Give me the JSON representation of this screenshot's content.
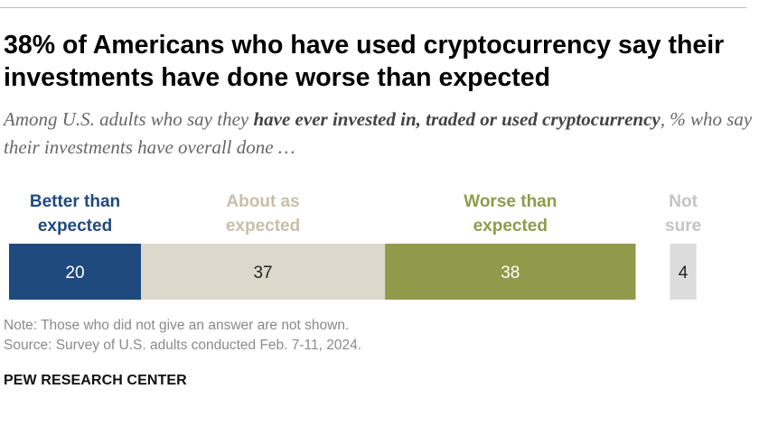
{
  "title": "38% of Americans who have used cryptocurrency say their investments have done worse than expected",
  "subtitle": {
    "part1": "Among U.S. adults who say they ",
    "bold": "have ever invested in, traded or used cryptocurrency",
    "part2": ", % who say their investments have overall done …"
  },
  "chart_data": {
    "type": "bar",
    "orientation": "horizontal-stacked",
    "categories": [
      "Better than expected",
      "About as expected",
      "Worse than expected",
      "Not sure"
    ],
    "category_lines": [
      [
        "Better than",
        "expected"
      ],
      [
        "About as",
        "expected"
      ],
      [
        "Worse than",
        "expected"
      ],
      [
        "Not",
        "sure"
      ]
    ],
    "values": [
      20,
      37,
      38,
      4
    ],
    "colors": [
      "#1f4a7e",
      "#dcd8cb",
      "#8f9b4a",
      "#dcdcdc"
    ],
    "label_colors": [
      "#1f4a7e",
      "#c9bfa7",
      "#8f9b4a",
      "#c4c4c4"
    ],
    "value_colors": [
      "#ffffff",
      "#222222",
      "#ffffff",
      "#222222"
    ],
    "unit": "%",
    "xlim": [
      0,
      100
    ]
  },
  "note": "Note: Those who did not give an answer are not shown.",
  "source": "Source: Survey of U.S. adults conducted Feb. 7-11, 2024.",
  "brand": "PEW RESEARCH CENTER"
}
